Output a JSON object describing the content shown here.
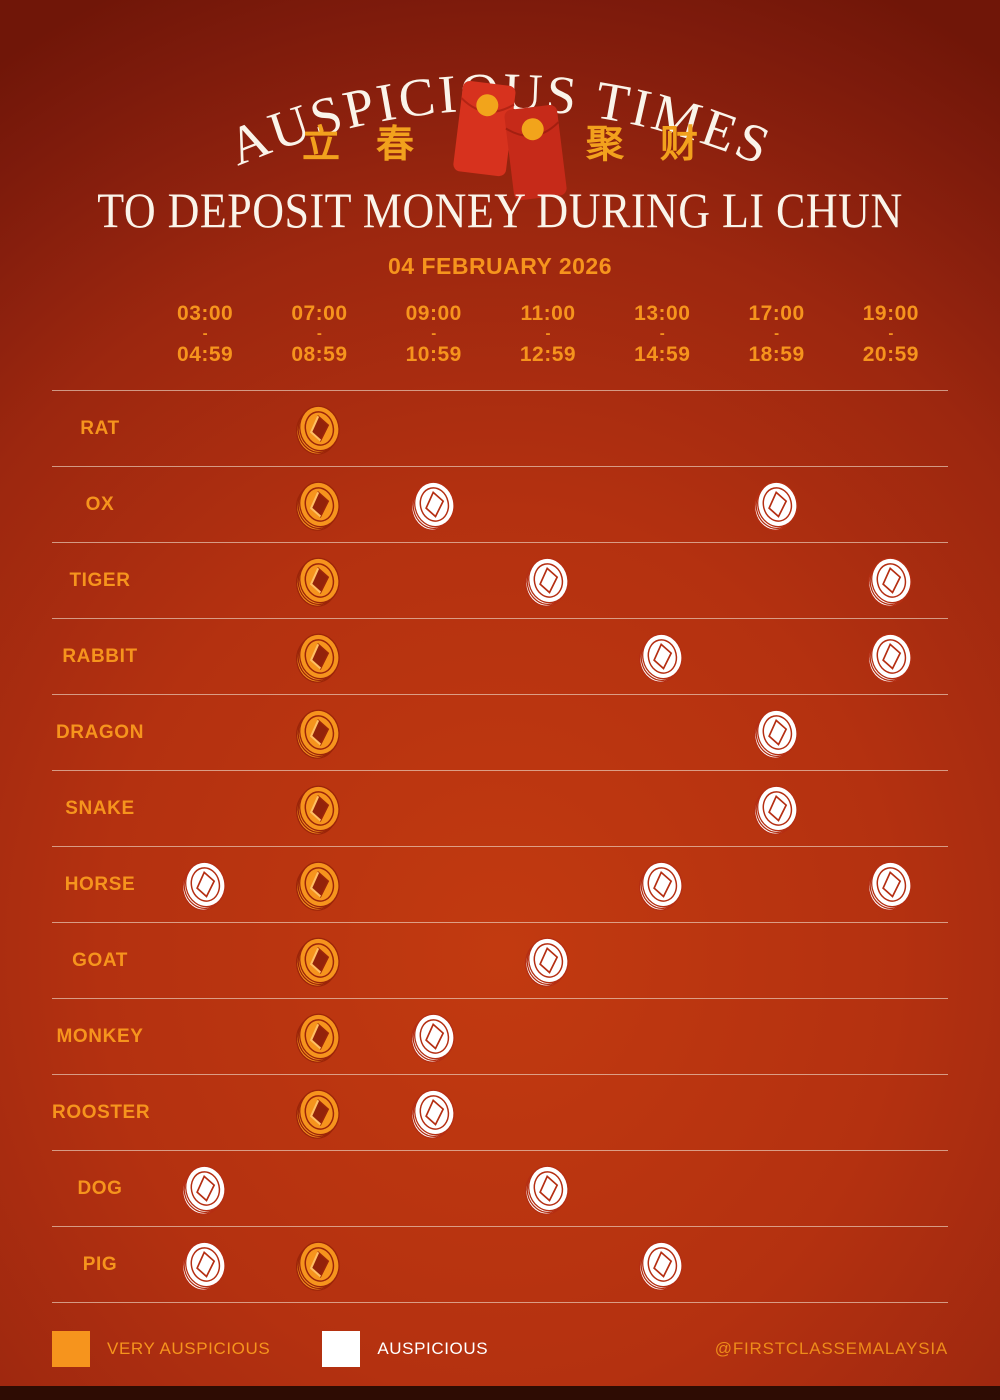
{
  "header": {
    "arched_title": "AUSPICIOUS TIMES",
    "chinese_left": "立春",
    "chinese_right": "聚财",
    "subtitle": "TO DEPOSIT MONEY DURING LI CHUN",
    "date": "04 FEBRUARY 2026"
  },
  "table": {
    "dash": "-",
    "columns": [
      {
        "start": "03:00",
        "end": "04:59"
      },
      {
        "start": "07:00",
        "end": "08:59"
      },
      {
        "start": "09:00",
        "end": "10:59"
      },
      {
        "start": "11:00",
        "end": "12:59"
      },
      {
        "start": "13:00",
        "end": "14:59"
      },
      {
        "start": "17:00",
        "end": "18:59"
      },
      {
        "start": "19:00",
        "end": "20:59"
      }
    ],
    "rows": [
      {
        "zodiac": "RAT",
        "slots": [
          "",
          "very",
          "",
          "",
          "",
          "",
          ""
        ]
      },
      {
        "zodiac": "OX",
        "slots": [
          "",
          "very",
          "ausp",
          "",
          "",
          "ausp",
          ""
        ]
      },
      {
        "zodiac": "TIGER",
        "slots": [
          "",
          "very",
          "",
          "ausp",
          "",
          "",
          "ausp"
        ]
      },
      {
        "zodiac": "RABBIT",
        "slots": [
          "",
          "very",
          "",
          "",
          "ausp",
          "",
          "ausp"
        ]
      },
      {
        "zodiac": "DRAGON",
        "slots": [
          "",
          "very",
          "",
          "",
          "",
          "ausp",
          ""
        ]
      },
      {
        "zodiac": "SNAKE",
        "slots": [
          "",
          "very",
          "",
          "",
          "",
          "ausp",
          ""
        ]
      },
      {
        "zodiac": "HORSE",
        "slots": [
          "ausp",
          "very",
          "",
          "",
          "ausp",
          "",
          "ausp"
        ]
      },
      {
        "zodiac": "GOAT",
        "slots": [
          "",
          "very",
          "",
          "ausp",
          "",
          "",
          ""
        ]
      },
      {
        "zodiac": "MONKEY",
        "slots": [
          "",
          "very",
          "ausp",
          "",
          "",
          "",
          ""
        ]
      },
      {
        "zodiac": "ROOSTER",
        "slots": [
          "",
          "very",
          "ausp",
          "",
          "",
          "",
          ""
        ]
      },
      {
        "zodiac": "DOG",
        "slots": [
          "ausp",
          "",
          "",
          "ausp",
          "",
          "",
          ""
        ]
      },
      {
        "zodiac": "PIG",
        "slots": [
          "ausp",
          "very",
          "",
          "",
          "ausp",
          "",
          ""
        ]
      }
    ]
  },
  "legend": {
    "very_label": "VERY AUSPICIOUS",
    "ausp_label": "AUSPICIOUS",
    "handle": "@FIRSTCLASSEMALAYSIA"
  },
  "colors": {
    "very_auspicious": "#F6941D",
    "auspicious": "#FFFFFF",
    "accent_orange": "#F6941D",
    "title_cream": "#FAF4EA",
    "bg_center": "#BA3310",
    "bg_edge": "#73180A",
    "envelope_red": "#D7321E",
    "envelope_red_dark": "#C62A19",
    "envelope_gold": "#F2A41B",
    "coin_line_orange": "#9C2509",
    "coin_line_white": "#B52E12"
  },
  "chart_data": {
    "type": "table",
    "title": "Auspicious Times to Deposit Money During Li Chun",
    "date": "04 February 2026",
    "time_slots": [
      "03:00-04:59",
      "07:00-08:59",
      "09:00-10:59",
      "11:00-12:59",
      "13:00-14:59",
      "17:00-18:59",
      "19:00-20:59"
    ],
    "zodiacs": [
      "RAT",
      "OX",
      "TIGER",
      "RABBIT",
      "DRAGON",
      "SNAKE",
      "HORSE",
      "GOAT",
      "MONKEY",
      "ROOSTER",
      "DOG",
      "PIG"
    ],
    "matrix": [
      [
        null,
        "very_auspicious",
        null,
        null,
        null,
        null,
        null
      ],
      [
        null,
        "very_auspicious",
        "auspicious",
        null,
        null,
        "auspicious",
        null
      ],
      [
        null,
        "very_auspicious",
        null,
        "auspicious",
        null,
        null,
        "auspicious"
      ],
      [
        null,
        "very_auspicious",
        null,
        null,
        "auspicious",
        null,
        "auspicious"
      ],
      [
        null,
        "very_auspicious",
        null,
        null,
        null,
        "auspicious",
        null
      ],
      [
        null,
        "very_auspicious",
        null,
        null,
        null,
        "auspicious",
        null
      ],
      [
        "auspicious",
        "very_auspicious",
        null,
        null,
        "auspicious",
        null,
        "auspicious"
      ],
      [
        null,
        "very_auspicious",
        null,
        "auspicious",
        null,
        null,
        null
      ],
      [
        null,
        "very_auspicious",
        "auspicious",
        null,
        null,
        null,
        null
      ],
      [
        null,
        "very_auspicious",
        "auspicious",
        null,
        null,
        null,
        null
      ],
      [
        "auspicious",
        null,
        null,
        "auspicious",
        null,
        null,
        null
      ],
      [
        "auspicious",
        "very_auspicious",
        null,
        null,
        "auspicious",
        null,
        null
      ]
    ],
    "legend": {
      "very_auspicious": "orange coin",
      "auspicious": "white coin"
    },
    "layout": "zodiac rows x time-slot columns, coin icon marks auspicious slot"
  }
}
